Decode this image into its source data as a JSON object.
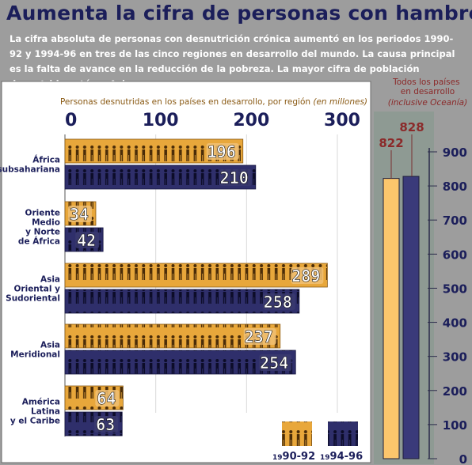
{
  "title": "Aumenta la cifra de personas con hambre",
  "intro": "La cifra absoluta de personas con desnutrición crónica aumentó en los periodos 1990-92 y 1994-96 en tres de las cinco regiones en desarrollo del mundo. La causa principal es la falta de avance en la reducción de la pobreza. La mayor cifra de población desnutrida está en Asia.",
  "colors": {
    "background": "#9d9d9d",
    "panel": "#ffffff",
    "title": "#1b1e5a",
    "series_1990": "#e8a73b",
    "series_1994": "#2f2f6b",
    "axis_text": "#1b1e5a",
    "subtitle_text": "#8a5a14",
    "side_label": "#8b2a2a",
    "side_bar_1990": "#fcc66c",
    "side_bar_1994": "#3a3a7a",
    "side_panel": "#8e9a93"
  },
  "legend": {
    "series_1990": {
      "small": "19",
      "big": "90-92"
    },
    "series_1994": {
      "small": "19",
      "big": "94-96"
    }
  },
  "chart_data": [
    {
      "type": "bar",
      "orientation": "horizontal",
      "title_main": "Personas desnutridas en los países en desarrollo, por región",
      "title_units": "(en millones)",
      "xlim": [
        0,
        300
      ],
      "ticks": [
        "0",
        "100",
        "200",
        "300"
      ],
      "tick_values": [
        0,
        100,
        200,
        300
      ],
      "grid": true,
      "categories": [
        [
          "África",
          "subsahariana"
        ],
        [
          "Oriente",
          "Medio",
          "y Norte",
          "de África"
        ],
        [
          "Asia",
          "Oriental y",
          "Sudoriental"
        ],
        [
          "Asia",
          "Meridional"
        ],
        [
          "América",
          "Latina",
          "y el Caribe"
        ]
      ],
      "series": [
        {
          "period": "1990-92",
          "values": [
            196,
            34,
            289,
            237,
            64
          ]
        },
        {
          "period": "1994-96",
          "values": [
            210,
            42,
            258,
            254,
            63
          ]
        }
      ]
    },
    {
      "type": "bar",
      "orientation": "vertical",
      "title": [
        "Todos los países",
        "en desarrollo"
      ],
      "subtitle": "(inclusive Oceanía)",
      "ylim": [
        0,
        900
      ],
      "ticks": [
        "0",
        "100",
        "200",
        "300",
        "400",
        "500",
        "600",
        "700",
        "800",
        "900"
      ],
      "tick_values": [
        0,
        100,
        200,
        300,
        400,
        500,
        600,
        700,
        800,
        900
      ],
      "grid": true,
      "categories": [
        "1990-92",
        "1994-96"
      ],
      "values": [
        822,
        828
      ]
    }
  ]
}
